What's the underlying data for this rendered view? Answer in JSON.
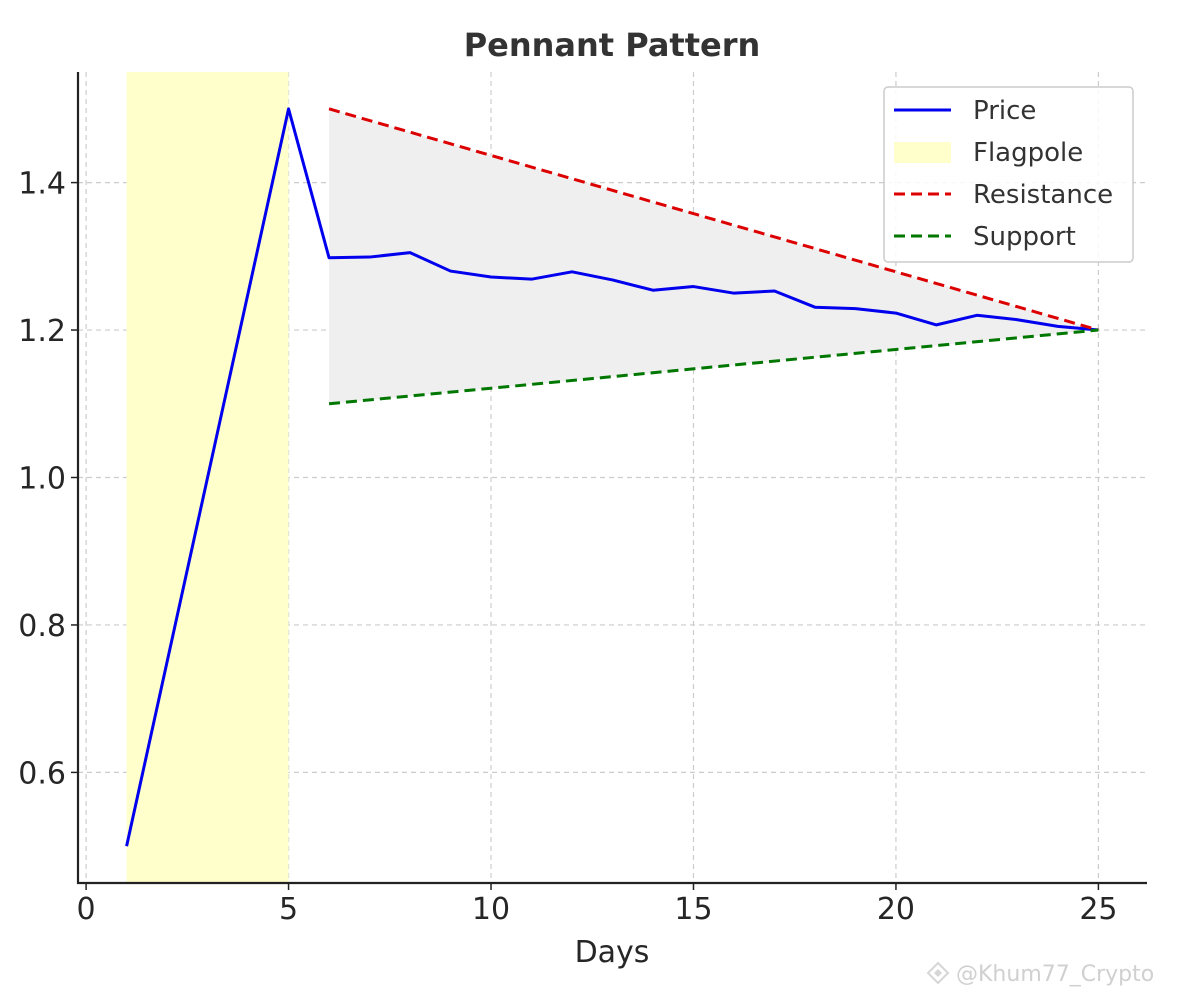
{
  "chart_data": {
    "type": "line",
    "title": "Pennant Pattern",
    "xlabel": "Days",
    "ylabel": "",
    "xlim": [
      -0.2,
      26.2
    ],
    "ylim": [
      0.45,
      1.55
    ],
    "xticks": [
      0,
      5,
      10,
      15,
      20,
      25
    ],
    "yticks": [
      0.6,
      0.8,
      1.0,
      1.2,
      1.4
    ],
    "ytick_labels": [
      "0.6",
      "0.8",
      "1.0",
      "1.2",
      "1.4"
    ],
    "grid": true,
    "legend_position": "top-right",
    "series": [
      {
        "name": "Price",
        "style": "solid",
        "color": "#0000ee",
        "x": [
          1,
          5,
          6,
          7,
          8,
          9,
          10,
          11,
          12,
          13,
          14,
          15,
          16,
          17,
          18,
          19,
          20,
          21,
          22,
          23,
          24,
          25
        ],
        "y": [
          0.5,
          1.5,
          1.298,
          1.299,
          1.305,
          1.28,
          1.272,
          1.269,
          1.279,
          1.268,
          1.254,
          1.259,
          1.25,
          1.253,
          1.231,
          1.229,
          1.223,
          1.207,
          1.22,
          1.214,
          1.205,
          1.2
        ]
      },
      {
        "name": "Resistance",
        "style": "dashed",
        "color": "#dd0000",
        "x": [
          6,
          25
        ],
        "y": [
          1.5,
          1.2
        ]
      },
      {
        "name": "Support",
        "style": "dashed",
        "color": "#007700",
        "x": [
          6,
          25
        ],
        "y": [
          1.1,
          1.2
        ]
      }
    ],
    "flagpole": {
      "name": "Flagpole",
      "x_start": 1,
      "x_end": 5,
      "color": "#ffffcc"
    },
    "pennant_fill_color": "#efefef"
  },
  "watermark": "@Khum77_Crypto"
}
